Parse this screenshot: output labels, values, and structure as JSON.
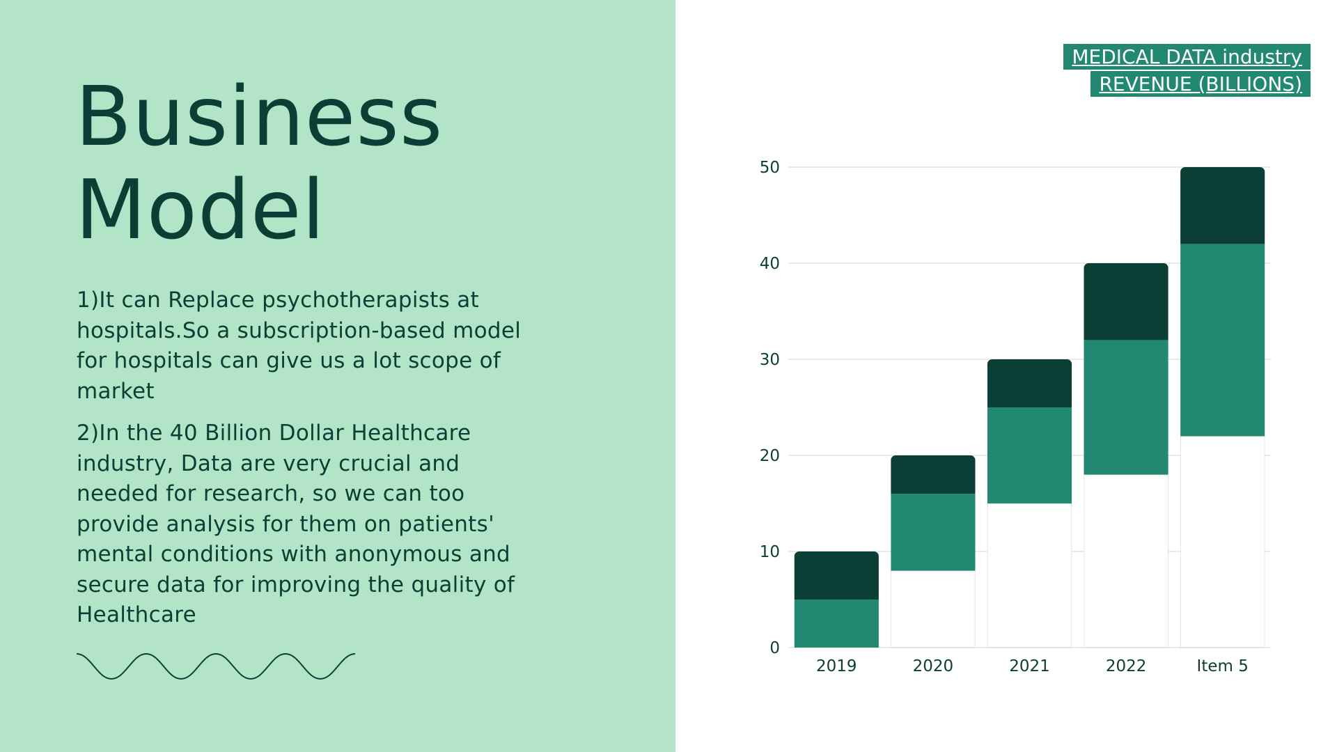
{
  "slide": {
    "title_lines": [
      "Business",
      "Model"
    ],
    "paragraphs": [
      "1)It can Replace psychotherapists at hospitals.So a subscription-based model for hospitals can give us a lot scope of market",
      "2)In the 40 Billion Dollar Healthcare industry, Data are very crucial and needed for research, so we can too provide analysis for them on patients' mental conditions with anonymous and secure data for improving the quality of Healthcare"
    ],
    "decoration": "wave-line"
  },
  "colors": {
    "panel_bg": "#b3e4c7",
    "text_dark": "#0b3f35",
    "series_1": "#ffffff",
    "series_2": "#238872",
    "series_3": "#0b3f35",
    "grid": "#d9dfdd"
  },
  "chart_data": {
    "type": "bar",
    "stacked": true,
    "title_lines": [
      "MEDICAL DATA industry",
      "REVENUE (BILLIONS)"
    ],
    "categories": [
      "2019",
      "2020",
      "2021",
      "2022",
      "Item 5"
    ],
    "series": [
      {
        "values": [
          0,
          8,
          15,
          18,
          22
        ],
        "color": "#ffffff"
      },
      {
        "values": [
          5,
          8,
          10,
          14,
          20
        ],
        "color": "#238872"
      },
      {
        "values": [
          5,
          4,
          5,
          8,
          8
        ],
        "color": "#0b3f35"
      }
    ],
    "ylim": [
      0,
      50
    ],
    "yticks": [
      "0",
      "10",
      "20",
      "30",
      "40",
      "50"
    ],
    "grid": true,
    "legend": "none",
    "xlabel": "",
    "ylabel": ""
  }
}
